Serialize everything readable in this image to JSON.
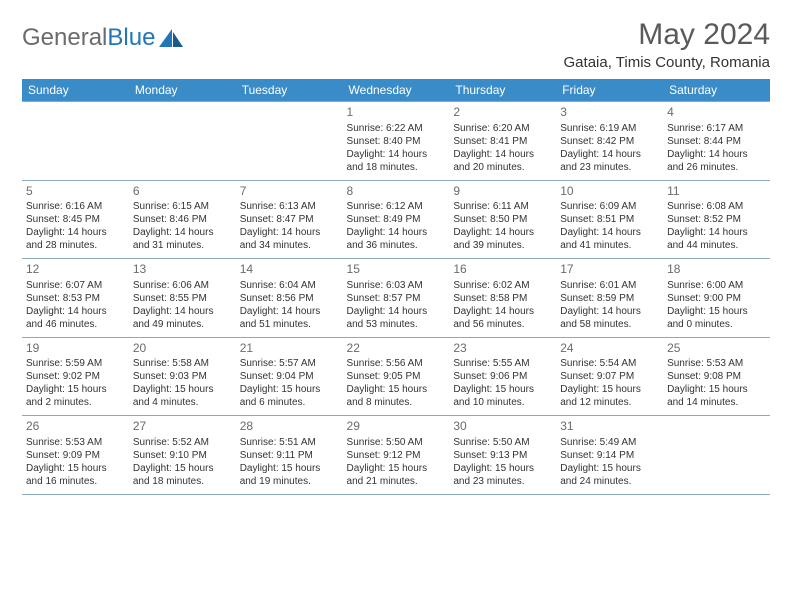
{
  "brand": {
    "part1": "General",
    "part2": "Blue"
  },
  "title": "May 2024",
  "location": "Gataia, Timis County, Romania",
  "day_headers": [
    "Sunday",
    "Monday",
    "Tuesday",
    "Wednesday",
    "Thursday",
    "Friday",
    "Saturday"
  ],
  "colors": {
    "header_bg": "#3a8cc9",
    "header_text": "#ffffff",
    "rule": "#8aa8bf",
    "logo_gray": "#6b6b6b",
    "logo_blue": "#2176b8",
    "title_color": "#5a5a5a",
    "body_text": "#333333"
  },
  "fonts": {
    "month_title_pt": 30,
    "location_pt": 15,
    "day_header_pt": 12,
    "daynum_pt": 12,
    "cell_pt": 10
  },
  "weeks": [
    [
      null,
      null,
      null,
      {
        "n": "1",
        "sr": "6:22 AM",
        "ss": "8:40 PM",
        "dl": "14 hours and 18 minutes."
      },
      {
        "n": "2",
        "sr": "6:20 AM",
        "ss": "8:41 PM",
        "dl": "14 hours and 20 minutes."
      },
      {
        "n": "3",
        "sr": "6:19 AM",
        "ss": "8:42 PM",
        "dl": "14 hours and 23 minutes."
      },
      {
        "n": "4",
        "sr": "6:17 AM",
        "ss": "8:44 PM",
        "dl": "14 hours and 26 minutes."
      }
    ],
    [
      {
        "n": "5",
        "sr": "6:16 AM",
        "ss": "8:45 PM",
        "dl": "14 hours and 28 minutes."
      },
      {
        "n": "6",
        "sr": "6:15 AM",
        "ss": "8:46 PM",
        "dl": "14 hours and 31 minutes."
      },
      {
        "n": "7",
        "sr": "6:13 AM",
        "ss": "8:47 PM",
        "dl": "14 hours and 34 minutes."
      },
      {
        "n": "8",
        "sr": "6:12 AM",
        "ss": "8:49 PM",
        "dl": "14 hours and 36 minutes."
      },
      {
        "n": "9",
        "sr": "6:11 AM",
        "ss": "8:50 PM",
        "dl": "14 hours and 39 minutes."
      },
      {
        "n": "10",
        "sr": "6:09 AM",
        "ss": "8:51 PM",
        "dl": "14 hours and 41 minutes."
      },
      {
        "n": "11",
        "sr": "6:08 AM",
        "ss": "8:52 PM",
        "dl": "14 hours and 44 minutes."
      }
    ],
    [
      {
        "n": "12",
        "sr": "6:07 AM",
        "ss": "8:53 PM",
        "dl": "14 hours and 46 minutes."
      },
      {
        "n": "13",
        "sr": "6:06 AM",
        "ss": "8:55 PM",
        "dl": "14 hours and 49 minutes."
      },
      {
        "n": "14",
        "sr": "6:04 AM",
        "ss": "8:56 PM",
        "dl": "14 hours and 51 minutes."
      },
      {
        "n": "15",
        "sr": "6:03 AM",
        "ss": "8:57 PM",
        "dl": "14 hours and 53 minutes."
      },
      {
        "n": "16",
        "sr": "6:02 AM",
        "ss": "8:58 PM",
        "dl": "14 hours and 56 minutes."
      },
      {
        "n": "17",
        "sr": "6:01 AM",
        "ss": "8:59 PM",
        "dl": "14 hours and 58 minutes."
      },
      {
        "n": "18",
        "sr": "6:00 AM",
        "ss": "9:00 PM",
        "dl": "15 hours and 0 minutes."
      }
    ],
    [
      {
        "n": "19",
        "sr": "5:59 AM",
        "ss": "9:02 PM",
        "dl": "15 hours and 2 minutes."
      },
      {
        "n": "20",
        "sr": "5:58 AM",
        "ss": "9:03 PM",
        "dl": "15 hours and 4 minutes."
      },
      {
        "n": "21",
        "sr": "5:57 AM",
        "ss": "9:04 PM",
        "dl": "15 hours and 6 minutes."
      },
      {
        "n": "22",
        "sr": "5:56 AM",
        "ss": "9:05 PM",
        "dl": "15 hours and 8 minutes."
      },
      {
        "n": "23",
        "sr": "5:55 AM",
        "ss": "9:06 PM",
        "dl": "15 hours and 10 minutes."
      },
      {
        "n": "24",
        "sr": "5:54 AM",
        "ss": "9:07 PM",
        "dl": "15 hours and 12 minutes."
      },
      {
        "n": "25",
        "sr": "5:53 AM",
        "ss": "9:08 PM",
        "dl": "15 hours and 14 minutes."
      }
    ],
    [
      {
        "n": "26",
        "sr": "5:53 AM",
        "ss": "9:09 PM",
        "dl": "15 hours and 16 minutes."
      },
      {
        "n": "27",
        "sr": "5:52 AM",
        "ss": "9:10 PM",
        "dl": "15 hours and 18 minutes."
      },
      {
        "n": "28",
        "sr": "5:51 AM",
        "ss": "9:11 PM",
        "dl": "15 hours and 19 minutes."
      },
      {
        "n": "29",
        "sr": "5:50 AM",
        "ss": "9:12 PM",
        "dl": "15 hours and 21 minutes."
      },
      {
        "n": "30",
        "sr": "5:50 AM",
        "ss": "9:13 PM",
        "dl": "15 hours and 23 minutes."
      },
      {
        "n": "31",
        "sr": "5:49 AM",
        "ss": "9:14 PM",
        "dl": "15 hours and 24 minutes."
      },
      null
    ]
  ]
}
